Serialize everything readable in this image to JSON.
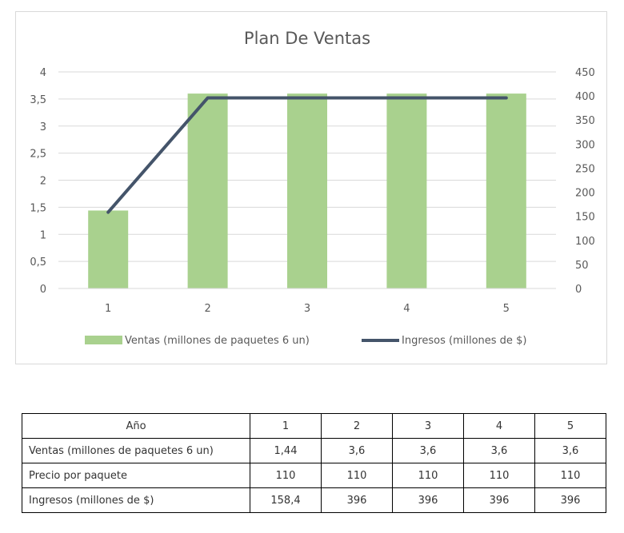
{
  "chart_data": {
    "type": "bar+line",
    "title": "Plan De Ventas",
    "categories": [
      "1",
      "2",
      "3",
      "4",
      "5"
    ],
    "series": [
      {
        "name": "Ventas (millones de paquetes 6 un)",
        "type": "bar",
        "axis": "left",
        "values": [
          1.44,
          3.6,
          3.6,
          3.6,
          3.6
        ]
      },
      {
        "name": "Ingresos (millones de $)",
        "type": "line",
        "axis": "right",
        "values": [
          158.4,
          396,
          396,
          396,
          396
        ]
      }
    ],
    "y_left": {
      "min": 0,
      "max": 4,
      "ticks": [
        "0",
        "0,5",
        "1",
        "1,5",
        "2",
        "2,5",
        "3",
        "3,5",
        "4"
      ]
    },
    "y_right": {
      "min": 0,
      "max": 450,
      "ticks": [
        "0",
        "50",
        "100",
        "150",
        "200",
        "250",
        "300",
        "350",
        "400",
        "450"
      ]
    },
    "grid": true,
    "legend_position": "bottom",
    "colors": {
      "bar": "#a9d18e",
      "line": "#44546a",
      "grid": "#d9d9d9",
      "text": "#595959"
    }
  },
  "table": {
    "header": {
      "label": "Año",
      "years": [
        "1",
        "2",
        "3",
        "4",
        "5"
      ]
    },
    "rows": [
      {
        "label": "Ventas (millones de paquetes 6 un)",
        "values": [
          "1,44",
          "3,6",
          "3,6",
          "3,6",
          "3,6"
        ]
      },
      {
        "label": "Precio por paquete",
        "values": [
          "110",
          "110",
          "110",
          "110",
          "110"
        ]
      },
      {
        "label": "Ingresos (millones de $)",
        "values": [
          "158,4",
          "396",
          "396",
          "396",
          "396"
        ]
      }
    ]
  }
}
